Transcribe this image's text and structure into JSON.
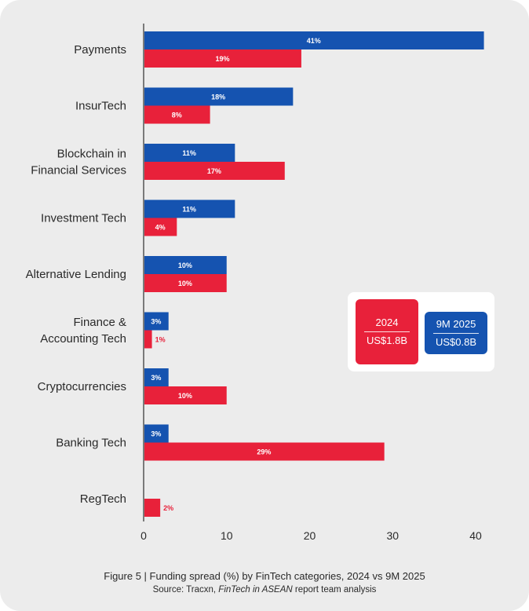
{
  "chart_data": {
    "type": "bar",
    "orientation": "horizontal",
    "categories": [
      [
        "Payments"
      ],
      [
        "InsurTech"
      ],
      [
        "Blockchain in",
        "Financial Services"
      ],
      [
        "Investment Tech"
      ],
      [
        "Alternative Lending"
      ],
      [
        "Finance &",
        "Accounting Tech"
      ],
      [
        "Cryptocurrencies"
      ],
      [
        "Banking Tech"
      ],
      [
        "RegTech"
      ]
    ],
    "series": [
      {
        "name": "9M 2025",
        "color": "#1553b0",
        "values": [
          41,
          18,
          11,
          11,
          10,
          3,
          3,
          3,
          null
        ],
        "labels": [
          "41%",
          "18%",
          "11%",
          "11%",
          "10%",
          "3%",
          "3%",
          "3%",
          null
        ]
      },
      {
        "name": "2024",
        "color": "#e8213a",
        "values": [
          19,
          8,
          17,
          4,
          10,
          1,
          10,
          29,
          2
        ],
        "labels": [
          "19%",
          "8%",
          "17%",
          "4%",
          "10%",
          "1%",
          "10%",
          "29%",
          "2%"
        ]
      }
    ],
    "xlim": [
      0,
      40
    ],
    "xticks": [
      0,
      10,
      20,
      30,
      40
    ],
    "xtick_labels": [
      "0",
      "10",
      "20",
      "30",
      "40"
    ],
    "legend_position": "right",
    "title": "Funding spread (%) by FinTech categories, 2024 vs 9M 2025"
  },
  "legend": {
    "y2024": {
      "title": "2024",
      "value": "US$1.8B",
      "color": "#e8213a"
    },
    "y2025": {
      "title": "9M 2025",
      "value": "US$0.8B",
      "color": "#1553b0"
    }
  },
  "caption": {
    "figure_prefix": "Figure 5 | Funding spread (%) by FinTech categories, 2024 vs 9M 2025",
    "source_plain": "Source: Tracxn, ",
    "source_italic": "FinTech in ASEAN",
    "source_rest": " report team analysis"
  }
}
